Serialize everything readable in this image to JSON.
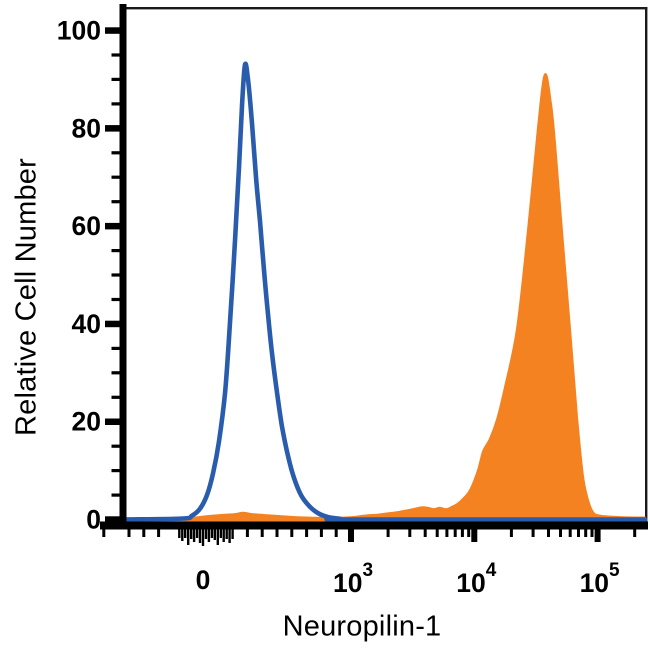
{
  "figure": {
    "background": "#ffffff",
    "xlabel": "Neuropilin-1",
    "ylabel": "Relative Cell Number"
  },
  "chart_data": {
    "type": "area",
    "subtype": "flow-cytometry-histogram-overlay",
    "title": "",
    "xlabel": "Neuropilin-1",
    "ylabel": "Relative Cell Number",
    "x_scale": "biexponential (linear below 10^3, log10 above)",
    "grid": false,
    "legend": "none",
    "ylim": [
      0,
      105
    ],
    "y_major_ticks": [
      0,
      20,
      40,
      60,
      80,
      100
    ],
    "y_minor_step": 5,
    "x_major_ticks": [
      {
        "label": "0",
        "u": 0
      },
      {
        "base": "10",
        "exp": "3",
        "u": 1000
      },
      {
        "base": "10",
        "exp": "4",
        "u": 10000
      },
      {
        "base": "10",
        "exp": "5",
        "u": 100000
      }
    ],
    "x_minor_ticks_u": [
      -670,
      -500,
      -400,
      -300,
      300,
      400,
      500,
      600,
      700,
      800,
      900,
      2000,
      3000,
      4000,
      5000,
      6000,
      7000,
      8000,
      9000,
      20000,
      30000,
      40000,
      50000,
      60000,
      70000,
      80000,
      90000,
      200000
    ],
    "x_cluster_ticks": [
      {
        "u": -160,
        "len": 9
      },
      {
        "u": -140,
        "len": 12
      },
      {
        "u": -120,
        "len": 9
      },
      {
        "u": -100,
        "len": 16
      },
      {
        "u": -80,
        "len": 10
      },
      {
        "u": -60,
        "len": 13
      },
      {
        "u": -40,
        "len": 9
      },
      {
        "u": -20,
        "len": 14
      },
      {
        "u": 0,
        "len": 17
      },
      {
        "u": 20,
        "len": 10
      },
      {
        "u": 40,
        "len": 13
      },
      {
        "u": 60,
        "len": 9
      },
      {
        "u": 80,
        "len": 11
      },
      {
        "u": 100,
        "len": 16
      },
      {
        "u": 120,
        "len": 9
      },
      {
        "u": 140,
        "len": 13
      },
      {
        "u": 160,
        "len": 10
      },
      {
        "u": 180,
        "len": 14
      },
      {
        "u": 200,
        "len": 10
      }
    ],
    "series": [
      {
        "name": "open-histogram-control",
        "color": "#2A5CAD",
        "style": "open-line",
        "peak": {
          "x": 284,
          "y": 93
        },
        "points": [
          [
            -520,
            0
          ],
          [
            -135,
            0.2
          ],
          [
            -74,
            0.8
          ],
          [
            -20,
            2.2
          ],
          [
            27,
            5
          ],
          [
            68,
            9.5
          ],
          [
            108,
            16
          ],
          [
            149,
            26
          ],
          [
            182,
            40
          ],
          [
            216,
            57
          ],
          [
            243,
            72
          ],
          [
            264,
            85
          ],
          [
            284,
            93
          ],
          [
            304,
            90
          ],
          [
            331,
            81
          ],
          [
            358,
            70
          ],
          [
            385,
            61
          ],
          [
            412,
            51
          ],
          [
            439,
            42
          ],
          [
            466,
            34
          ],
          [
            500,
            26
          ],
          [
            534,
            19
          ],
          [
            574,
            13
          ],
          [
            615,
            8.5
          ],
          [
            662,
            5
          ],
          [
            716,
            2.8
          ],
          [
            777,
            1.3
          ],
          [
            845,
            0.5
          ],
          [
            926,
            0.15
          ],
          [
            1010,
            0
          ]
        ]
      },
      {
        "name": "filled-histogram-neuropilin-1",
        "color": "#F58220",
        "style": "filled",
        "peak": {
          "x": 37400,
          "y": 91
        },
        "points": [
          [
            -350,
            0
          ],
          [
            -88,
            0.3
          ],
          [
            0,
            0.6
          ],
          [
            115,
            0.9
          ],
          [
            216,
            1.1
          ],
          [
            270,
            1.4
          ],
          [
            331,
            1.1
          ],
          [
            419,
            0.9
          ],
          [
            520,
            0.7
          ],
          [
            622,
            0.5
          ],
          [
            757,
            0.35
          ],
          [
            892,
            0.35
          ],
          [
            1000,
            0.45
          ],
          [
            1300,
            0.8
          ],
          [
            1660,
            1.0
          ],
          [
            2070,
            1.3
          ],
          [
            2500,
            1.6
          ],
          [
            2900,
            1.9
          ],
          [
            3300,
            2.2
          ],
          [
            3770,
            2.5
          ],
          [
            4200,
            2.4
          ],
          [
            4700,
            2.1
          ],
          [
            5250,
            2.4
          ],
          [
            5880,
            2.1
          ],
          [
            6600,
            2.6
          ],
          [
            7300,
            3.2
          ],
          [
            7950,
            4
          ],
          [
            9230,
            6
          ],
          [
            10700,
            10
          ],
          [
            11800,
            14
          ],
          [
            13400,
            16.5
          ],
          [
            15300,
            20.5
          ],
          [
            17700,
            27
          ],
          [
            22200,
            39
          ],
          [
            27200,
            59
          ],
          [
            32800,
            80
          ],
          [
            37400,
            91
          ],
          [
            41900,
            85
          ],
          [
            45100,
            77
          ],
          [
            51400,
            59
          ],
          [
            59700,
            39
          ],
          [
            68100,
            21
          ],
          [
            76000,
            9
          ],
          [
            83600,
            4
          ],
          [
            91800,
            1.5
          ],
          [
            104000,
            0.8
          ],
          [
            151000,
            0.5
          ],
          [
            256000,
            0.4
          ]
        ]
      }
    ],
    "colors": {
      "axis": "#000000",
      "frame": "#1a1a1a",
      "blue_series": "#2A5CAD",
      "orange_series": "#F58220"
    }
  }
}
